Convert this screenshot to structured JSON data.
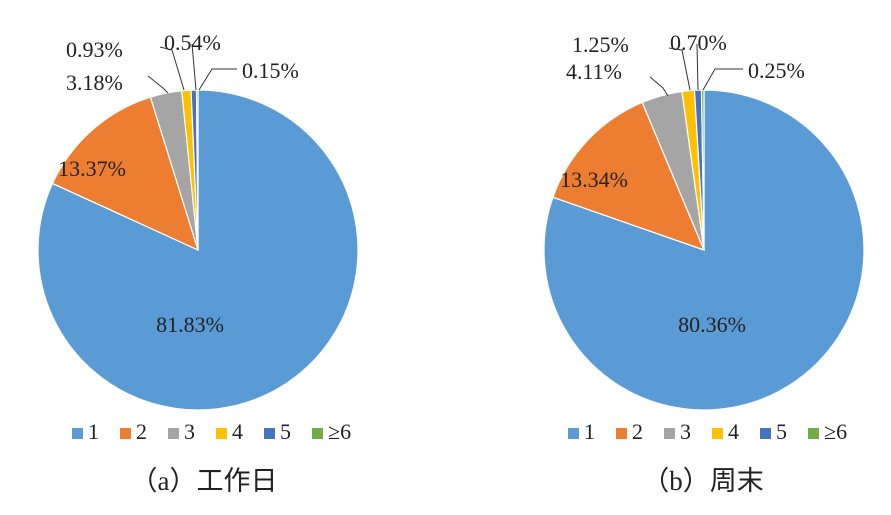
{
  "chart_data": [
    {
      "type": "pie",
      "title": "（a）工作日",
      "categories": [
        "1",
        "2",
        "3",
        "4",
        "5",
        "≥6"
      ],
      "values": [
        81.83,
        13.37,
        3.18,
        0.93,
        0.54,
        0.15
      ],
      "data_labels": [
        "81.83%",
        "13.37%",
        "3.18%",
        "0.93%",
        "0.54%",
        "0.15%"
      ],
      "legend_position": "bottom"
    },
    {
      "type": "pie",
      "title": "（b）周末",
      "categories": [
        "1",
        "2",
        "3",
        "4",
        "5",
        "≥6"
      ],
      "values": [
        80.36,
        13.34,
        4.11,
        1.25,
        0.7,
        0.25
      ],
      "data_labels": [
        "80.36%",
        "13.34%",
        "4.11%",
        "1.25%",
        "0.70%",
        "0.25%"
      ],
      "legend_position": "bottom"
    }
  ],
  "colors": [
    "#5B9BD5",
    "#ED7D31",
    "#A5A5A5",
    "#FFC000",
    "#4472C4",
    "#70AD47"
  ]
}
